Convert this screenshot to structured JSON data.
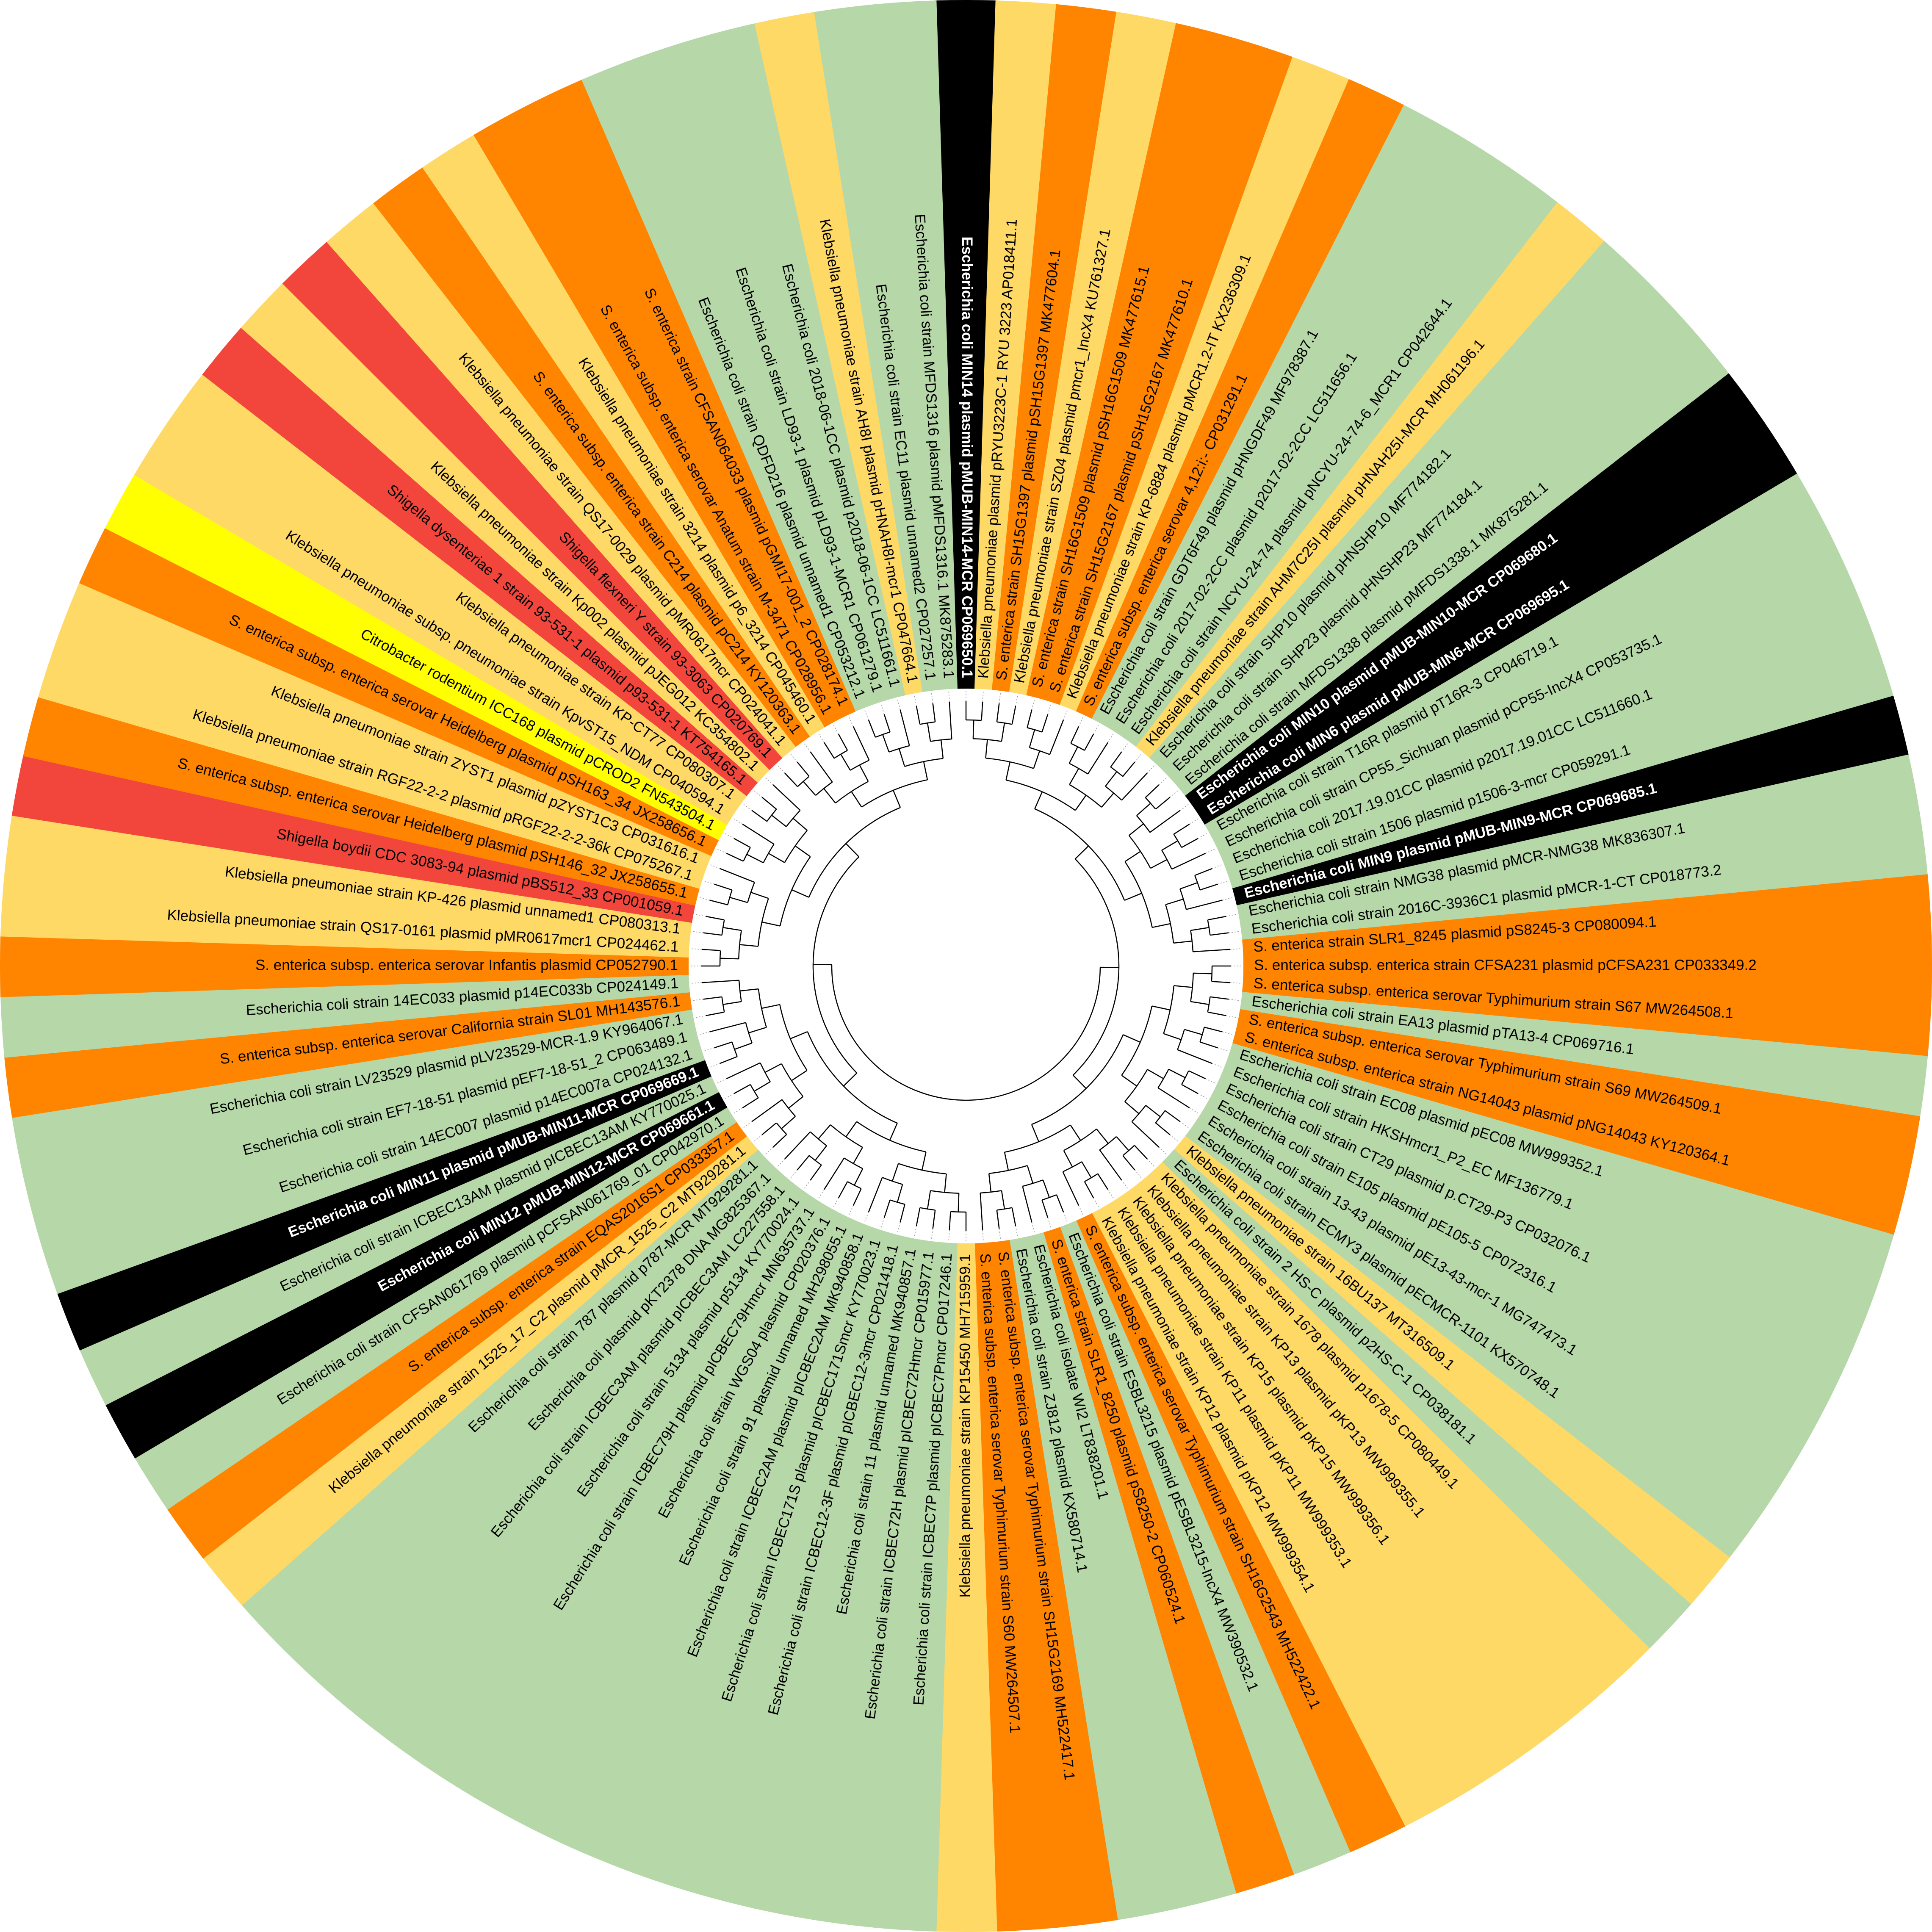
{
  "leaves": [
    {
      "label": "Escherichia coli MIN14 plasmid pMUB-MIN14-MCR CP069650.1",
      "color": "#000000"
    },
    {
      "label": "Klebsiella pneumoniae plasmid pRYU3223C-1 RYU 3223 AP018411.1",
      "color": "#ffd966"
    },
    {
      "label": "S. enterica strain SH15G1397 plasmid pSH15G1397 MK477604.1",
      "color": "#ff8400"
    },
    {
      "label": "Klebsiella pneumoniae strain SZ04 plasmid pmcr1_IncX4 KU761327.1",
      "color": "#ffd966"
    },
    {
      "label": "S. enterica strain SH16G1509 plasmid pSH16G1509 MK477615.1",
      "color": "#ff8400"
    },
    {
      "label": "S. enterica strain SH15G2167 plasmid pSH15G2167 MK477610.1",
      "color": "#ff8400"
    },
    {
      "label": "Klebsiella pneumoniae strain KP-6884 plasmid pMCR1.2-IT KX236309.1",
      "color": "#ffd966"
    },
    {
      "label": "S. enterica subsp. enterica serovar 4,12:i:- CP031291.1",
      "color": "#ff8400"
    },
    {
      "label": "Escherichia coli strain GDT6F49 plasmid pHNGDF49 MF978387.1",
      "color": "#b6d7a8"
    },
    {
      "label": "Escherichia coli 2017-02-2CC plasmid p2017-02-2CC LC511656.1",
      "color": "#b6d7a8"
    },
    {
      "label": "Escherichia coli strain NCYU-24-74 plasmid pNCYU-24-74-6_MCR1 CP042644.1",
      "color": "#b6d7a8"
    },
    {
      "label": "Klebsiella pneumoniae strain AHM7C25I plasmid pHNAH25I-MCR MH061196.1",
      "color": "#ffd966"
    },
    {
      "label": "Escherichia coli strain SHP10 plasmid pHNSHP10 MF774182.1",
      "color": "#b6d7a8"
    },
    {
      "label": "Escherichia coli strain SHP23 plasmid pHNSHP23 MF774184.1",
      "color": "#b6d7a8"
    },
    {
      "label": "Escherichia coli strain MFDS1338 plasmid pMFDS1338.1 MK875281.1",
      "color": "#b6d7a8"
    },
    {
      "label": "Escherichia coli MIN10 plasmid pMUB-MIN10-MCR CP069680.1",
      "color": "#000000"
    },
    {
      "label": "Escherichia coli MIN6 plasmid pMUB-MIN6-MCR CP069695.1",
      "color": "#000000"
    },
    {
      "label": "Escherichia coli strain T16R plasmid pT16R-3 CP046719.1",
      "color": "#b6d7a8"
    },
    {
      "label": "Escherichia coli strain CP55_Sichuan plasmid pCP55-IncX4 CP053735.1",
      "color": "#b6d7a8"
    },
    {
      "label": "Escherichia coli 2017.19.01CC plasmid p2017.19.01CC LC511660.1",
      "color": "#b6d7a8"
    },
    {
      "label": "Escherichia coli strain 1506 plasmid p1506-3-mcr CP059291.1",
      "color": "#b6d7a8"
    },
    {
      "label": "Escherichia coli MIN9 plasmid pMUB-MIN9-MCR CP069685.1",
      "color": "#000000"
    },
    {
      "label": "Escherichia coli strain NMG38 plasmid pMCR-NMG38 MK836307.1",
      "color": "#b6d7a8"
    },
    {
      "label": "Escherichia coli strain 2016C-3936C1 plasmid pMCR-1-CT CP018773.2",
      "color": "#b6d7a8"
    },
    {
      "label": "S. enterica strain SLR1_8245 plasmid pS8245-3 CP080094.1",
      "color": "#ff8400"
    },
    {
      "label": "S. enterica subsp. enterica strain CFSA231 plasmid pCFSA231 CP033349.2",
      "color": "#ff8400"
    },
    {
      "label": "S. enterica subsp. enterica serovar Typhimurium strain S67 MW264508.1",
      "color": "#ff8400"
    },
    {
      "label": "Escherichia coli strain EA13 plasmid pTA13-4 CP069716.1",
      "color": "#b6d7a8"
    },
    {
      "label": "S. enterica subsp. enterica serovar Typhimurium strain S69 MW264509.1",
      "color": "#ff8400"
    },
    {
      "label": "S. enterica subsp. enterica strain NG14043 plasmid pNG14043 KY120364.1",
      "color": "#ff8400"
    },
    {
      "label": "Escherichia coli strain EC08 plasmid pEC08 MW999352.1",
      "color": "#b6d7a8"
    },
    {
      "label": "Escherichia coli strain HKSHmcr1_P2_EC MF136779.1",
      "color": "#b6d7a8"
    },
    {
      "label": "Escherichia coli strain CT29 plasmid p.CT29-P3 CP032076.1",
      "color": "#b6d7a8"
    },
    {
      "label": "Escherichia coli strain E105 plasmid pE105-5 CP072316.1",
      "color": "#b6d7a8"
    },
    {
      "label": "Escherichia coli strain 13-43 plasmid pE13-43-mcr-1 MG747473.1",
      "color": "#b6d7a8"
    },
    {
      "label": "Escherichia coli strain ECMY3 plasmid pECMCR-1101 KX570748.1",
      "color": "#b6d7a8"
    },
    {
      "label": "Klebsiella pneumoniae strain 16BU137 MT316509.1",
      "color": "#ffd966"
    },
    {
      "label": "Escherichia coli strain 2 HS-C plasmid p2HS-C-1 CP038181.1",
      "color": "#b6d7a8"
    },
    {
      "label": "Klebsiella pneumoniae strain 1678 plasmid p1678-5 CP080449.1",
      "color": "#ffd966"
    },
    {
      "label": "Klebsiella pneumoniae strain KP13 plasmid pKP13 MW999355.1",
      "color": "#ffd966"
    },
    {
      "label": "Klebsiella pneumoniae strain KP15 plasmid pKP15 MW999356.1",
      "color": "#ffd966"
    },
    {
      "label": "Klebsiella pneumoniae strain KP11 plasmid pKP11 MW999353.1",
      "color": "#ffd966"
    },
    {
      "label": "Klebsiella pneumoniae strain KP12 plasmid pKP12 MW999354.1",
      "color": "#ffd966"
    },
    {
      "label": "S. enterica subsp. enterica serovar Typhimurium strain SH16G2543 MH522422.1",
      "color": "#ff8400"
    },
    {
      "label": "Escherichia coli strain ESBL3215 plasmid pESBL3215-IncX4 MW390532.1",
      "color": "#b6d7a8"
    },
    {
      "label": "S. enterica strain SLR1_8250 plasmid pS8250-2 CP060524.1",
      "color": "#ff8400"
    },
    {
      "label": "Escherichia coli isolate WI2 LT838201.1",
      "color": "#b6d7a8"
    },
    {
      "label": "Escherichia coli strain ZJ812 plasmid KX580714.1",
      "color": "#b6d7a8"
    },
    {
      "label": "S. enterica subsp. enterica serovar Typhimurium strain SH15G2169 MH522417.1",
      "color": "#ff8400"
    },
    {
      "label": "S. enterica subsp. enterica serovar Typhimurium strain S60 MW264507.1",
      "color": "#ff8400"
    },
    {
      "label": "Klebsiella pneumoniae strain KP15450 MH715959.1",
      "color": "#ffd966"
    },
    {
      "label": "Escherichia coli strain ICBEC7P plasmid pICBEC7Pmcr CP017246.1",
      "color": "#b6d7a8"
    },
    {
      "label": "Escherichia coli strain ICBEC72H plasmid pICBEC72Hmcr CP015977.1",
      "color": "#b6d7a8"
    },
    {
      "label": "Escherichia coli strain 11 plasmid unnamed MK940857.1",
      "color": "#b6d7a8"
    },
    {
      "label": "Escherichia coli strain ICBEC12-3F plasmid pICBEC12-3mcr CP021418.1",
      "color": "#b6d7a8"
    },
    {
      "label": "Escherichia coli strain ICBEC171S plasmid pICBEC171Smcr KY770023.1",
      "color": "#b6d7a8"
    },
    {
      "label": "Escherichia coli strain ICBEC2AM plasmid pICBEC2AM MK940858.1",
      "color": "#b6d7a8"
    },
    {
      "label": "Escherichia coli strain 91 plasmid unnamed MH298055.1",
      "color": "#b6d7a8"
    },
    {
      "label": "Escherichia coli strain WGS04 plasmid CP020376.1",
      "color": "#b6d7a8"
    },
    {
      "label": "Escherichia coli strain ICBEC79H plasmid pICBEC79Hmcr MN635737.1",
      "color": "#b6d7a8"
    },
    {
      "label": "Escherichia coli strain 5134 plasmid p5134 KY770024.1",
      "color": "#b6d7a8"
    },
    {
      "label": "Escherichia coli strain ICBEC3AM plasmid pICBEC3AM LC227558.1",
      "color": "#b6d7a8"
    },
    {
      "label": "Escherichia coli plasmid pKT2378 DNA MG825367.1",
      "color": "#b6d7a8"
    },
    {
      "label": "Escherichia coli strain 787 plasmid p787-MCR MT929281.1",
      "color": "#b6d7a8"
    },
    {
      "label": "Klebsiella pneumoniae strain 1525_17_C2 plasmid pMCR_1525_C2 MT929281.1",
      "color": "#ffd966"
    },
    {
      "label": "S. enterica subsp. enterica strain EQAS2016S1 CP033357.1",
      "color": "#ff8400"
    },
    {
      "label": "Escherichia coli strain CFSAN061769 plasmid pCFSAN061769_01 CP042970.1",
      "color": "#b6d7a8"
    },
    {
      "label": "Escherichia coli MIN12 pMUB-MIN12-MCR CP069661.1",
      "color": "#000000"
    },
    {
      "label": "Escherichia coli strain ICBEC13AM plasmid pICBEC13AM KY770025.1",
      "color": "#b6d7a8"
    },
    {
      "label": "Escherichia coli MIN11 plasmid pMUB-MIN11-MCR CP069669.1",
      "color": "#000000"
    },
    {
      "label": "Escherichia coli strain 14EC007 plasmid p14EC007a CP024132.1",
      "color": "#b6d7a8"
    },
    {
      "label": "Escherichia coli strain EF7-18-51 plasmid pEF7-18-51_2 CP063489.1",
      "color": "#b6d7a8"
    },
    {
      "label": "Escherichia coli strain LV23529 plasmid pLV23529-MCR-1.9 KY964067.1",
      "color": "#b6d7a8"
    },
    {
      "label": "S. enterica subsp. enterica serovar California strain SL01 MH143576.1",
      "color": "#ff8400"
    },
    {
      "label": "Escherichia coli strain 14EC033 plasmid p14EC033b CP024149.1",
      "color": "#b6d7a8"
    },
    {
      "label": "S. enterica subsp. enterica serovar Infantis plasmid CP052790.1",
      "color": "#ff8400"
    },
    {
      "label": "Klebsiella pneumoniae strain QS17-0161 plasmid pMR0617mcr1 CP024462.1",
      "color": "#ffd966"
    },
    {
      "label": "Klebsiella pneumoniae strain KP-426 plasmid unnamed1 CP080313.1",
      "color": "#ffd966"
    },
    {
      "label": "Shigella boydii CDC 3083-94 plasmid pBS512_33 CP001059.1",
      "color": "#f2463c"
    },
    {
      "label": "S. enterica subsp. enterica serovar Heidelberg plasmid pSH146_32 JX258655.1",
      "color": "#ff8400"
    },
    {
      "label": "Klebsiella pneumoniae strain RGF22-2-2 plasmid pRGF22-2-2-36k CP075267.1",
      "color": "#ffd966"
    },
    {
      "label": "Klebsiella pneumoniae strain ZYST1 plasmid pZYST1C3 CP031616.1",
      "color": "#ffd966"
    },
    {
      "label": "S. enterica subsp. enterica serovar Heidelberg plasmid pSH163_34 JX258656.1",
      "color": "#ff8400"
    },
    {
      "label": "Citrobacter rodentium ICC168 plasmid pCROD2 FN543504.1",
      "color": "#ffff00"
    },
    {
      "label": "Klebsiella pneumoniae subsp. pneumoniae strain KpvST15_NDM CP040594.1",
      "color": "#ffd966"
    },
    {
      "label": "Klebsiella pneumoniae strain KP-CT77 CP080307.1",
      "color": "#ffd966"
    },
    {
      "label": "Shigella dysenteriae 1 strain 93-531-1 plasmid p93-531-1 KT754165.1",
      "color": "#f2463c"
    },
    {
      "label": "Klebsiella pneumoniae strain Kp002 plasmid pJEG012 KC354802.1",
      "color": "#ffd966"
    },
    {
      "label": "Shigella flexneri Y strain 93-3063 CP020769.1",
      "color": "#f2463c"
    },
    {
      "label": "Klebsiella pneumoniae strain QS17-0029 plasmid pMR0617mcr CP024041.1",
      "color": "#ffd966"
    },
    {
      "label": "S. enterica subsp. enterica strain C214 plasmid pC214 KY120363.1",
      "color": "#ff8400"
    },
    {
      "label": "Klebsiella pneumoniae strain 3214 plasmid p6_3214 CP045460.1",
      "color": "#ffd966"
    },
    {
      "label": "S. enterica subsp. enterica serovar Anatum strain M-3471 CP028956.1",
      "color": "#ff8400"
    },
    {
      "label": "S. enterica strain CFSAN064033 plasmid pGMI17-001_2 CP028174.1",
      "color": "#ff8400"
    },
    {
      "label": "Escherichia coli strain QDFD216 plasmid unnamed1 CP053212.1",
      "color": "#b6d7a8"
    },
    {
      "label": "Escherichia coli strain LD93-1 plasmid pLD93-1-MCR1 CP061279.1",
      "color": "#b6d7a8"
    },
    {
      "label": "Escherichia coli 2018-06-1CC plasmid p2018-06-1CC LC511661.1",
      "color": "#b6d7a8"
    },
    {
      "label": "Klebsiella pneumoniae strain AH8I plasmid pHNAH8I-mcr1 CP047664.1",
      "color": "#ffd966"
    },
    {
      "label": "Escherichia coli strain EC11 plasmid unnamed2 CP027257.1",
      "color": "#b6d7a8"
    },
    {
      "label": "Escherichia coli strain MFDS1316 plasmid pMFDS1316.1 MK875283.1",
      "color": "#b6d7a8"
    }
  ]
}
